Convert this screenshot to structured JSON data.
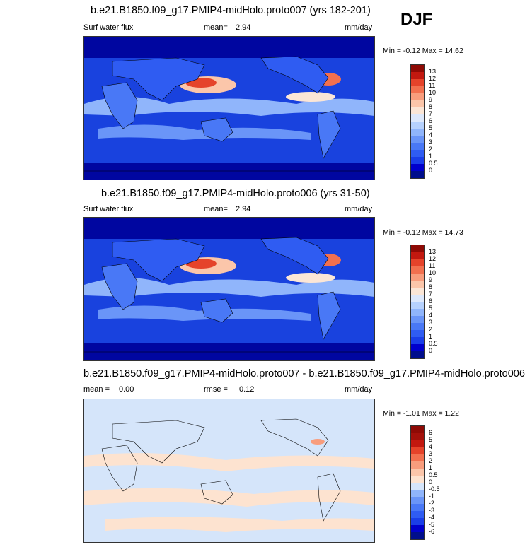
{
  "season": "DJF",
  "chart_data": [
    {
      "type": "heatmap",
      "title": "b.e21.B1850.f09_g17.PMIP4-midHolo.proto007 (yrs 182-201)",
      "left_label": "Surf water flux",
      "mean_label": "mean=",
      "mean_value": "2.94",
      "units": "mm/day",
      "minmax_text": "Min = -0.12 Max = 14.62",
      "min": -0.12,
      "max": 14.62,
      "levels": [
        "0",
        "0.5",
        "1",
        "2",
        "3",
        "4",
        "5",
        "6",
        "7",
        "8",
        "9",
        "10",
        "11",
        "12",
        "13"
      ],
      "colors": [
        "#000e8c",
        "#0000cc",
        "#1a3ee8",
        "#2f5cf2",
        "#4978f6",
        "#6a95f8",
        "#90b5fb",
        "#b6d1fd",
        "#dde8fb",
        "#fbe6d6",
        "#fbc6aa",
        "#f89d7d",
        "#f2704f",
        "#e5432a",
        "#c2180f",
        "#8e0a05"
      ]
    },
    {
      "type": "heatmap",
      "title": "b.e21.B1850.f09_g17.PMIP4-midHolo.proto006 (yrs 31-50)",
      "left_label": "Surf water flux",
      "mean_label": "mean=",
      "mean_value": "2.94",
      "units": "mm/day",
      "minmax_text": "Min = -0.12 Max = 14.73",
      "min": -0.12,
      "max": 14.73,
      "levels": [
        "0",
        "0.5",
        "1",
        "2",
        "3",
        "4",
        "5",
        "6",
        "7",
        "8",
        "9",
        "10",
        "11",
        "12",
        "13"
      ],
      "colors": [
        "#000e8c",
        "#0000cc",
        "#1a3ee8",
        "#2f5cf2",
        "#4978f6",
        "#6a95f8",
        "#90b5fb",
        "#b6d1fd",
        "#dde8fb",
        "#fbe6d6",
        "#fbc6aa",
        "#f89d7d",
        "#f2704f",
        "#e5432a",
        "#c2180f",
        "#8e0a05"
      ]
    },
    {
      "type": "heatmap",
      "title": "b.e21.B1850.f09_g17.PMIP4-midHolo.proto007 - b.e21.B1850.f09_g17.PMIP4-midHolo.proto006",
      "mean_label": "mean =",
      "mean_value": "0.00",
      "rmse_label": "rmse =",
      "rmse_value": "0.12",
      "units": "mm/day",
      "minmax_text": "Min = -1.01 Max = 1.22",
      "min": -1.01,
      "max": 1.22,
      "levels": [
        "-6",
        "-5",
        "-4",
        "-3",
        "-2",
        "-1",
        "-0.5",
        "0",
        "0.5",
        "1",
        "2",
        "3",
        "4",
        "5",
        "6"
      ],
      "colors": [
        "#000e8c",
        "#0000cc",
        "#1a3ee8",
        "#2f5cf2",
        "#4978f6",
        "#6a95f8",
        "#90b5fb",
        "#d5e5fa",
        "#fde3d0",
        "#fbc6aa",
        "#f89d7d",
        "#f2704f",
        "#e5432a",
        "#c2180f",
        "#a3100a",
        "#8e0a05"
      ]
    }
  ]
}
